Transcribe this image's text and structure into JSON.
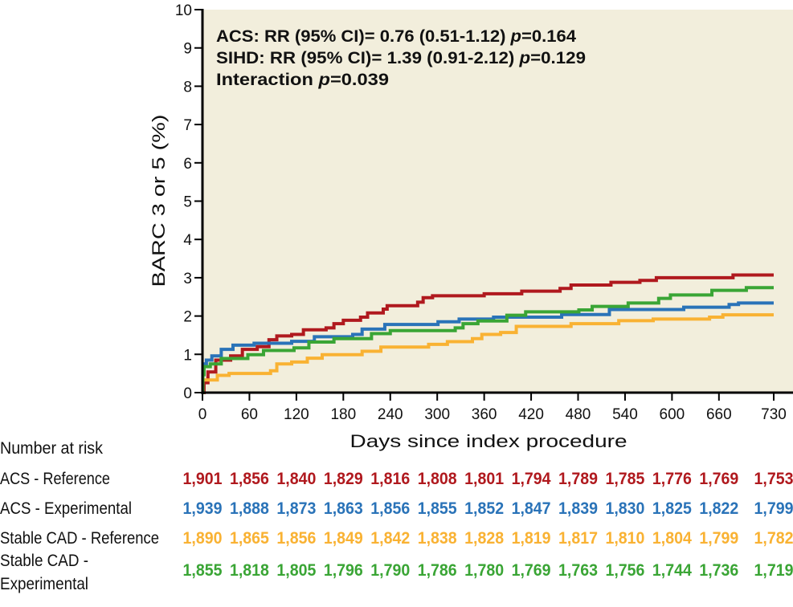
{
  "chart_data": {
    "type": "line",
    "step": true,
    "xlabel": "Days since index procedure",
    "ylabel": "BARC 3 or 5 (%)",
    "xlim": [
      0,
      730
    ],
    "ylim": [
      0,
      10
    ],
    "xticks": [
      0,
      60,
      120,
      180,
      240,
      300,
      360,
      420,
      480,
      540,
      600,
      660,
      730
    ],
    "yticks": [
      0,
      1,
      2,
      3,
      4,
      5,
      6,
      7,
      8,
      9,
      10
    ],
    "background": "#f2eedc",
    "grid": false,
    "annotations": [
      {
        "pre": "ACS: RR (95% CI)= 0.76 (0.51-1.12) ",
        "p": "p",
        "post": "=0.164"
      },
      {
        "pre": "SIHD: RR (95% CI)= 1.39 (0.91-2.12) ",
        "p": "p",
        "post": "=0.129"
      },
      {
        "pre": "Interaction ",
        "p": "p",
        "post": "=0.039"
      }
    ],
    "series": [
      {
        "name": "ACS - Reference",
        "color": "#b0191e",
        "x": [
          0,
          2,
          7,
          17,
          36,
          51,
          70,
          85,
          95,
          114,
          129,
          158,
          168,
          180,
          202,
          211,
          231,
          236,
          275,
          282,
          294,
          360,
          408,
          457,
          471,
          522,
          559,
          580,
          678,
          730
        ],
        "y": [
          0,
          0.26,
          0.54,
          0.85,
          0.96,
          1.13,
          1.2,
          1.38,
          1.48,
          1.52,
          1.64,
          1.69,
          1.8,
          1.89,
          1.97,
          2.08,
          2.18,
          2.27,
          2.36,
          2.48,
          2.53,
          2.58,
          2.65,
          2.72,
          2.81,
          2.88,
          2.93,
          3.0,
          3.07,
          3.07
        ]
      },
      {
        "name": "ACS - Experimental",
        "color": "#2a73b8",
        "x": [
          0,
          0.5,
          5,
          12,
          24,
          39,
          66,
          114,
          143,
          192,
          204,
          233,
          301,
          328,
          372,
          459,
          520,
          615,
          673,
          685,
          730
        ],
        "y": [
          0,
          0.75,
          0.85,
          0.96,
          1.13,
          1.24,
          1.29,
          1.34,
          1.46,
          1.52,
          1.66,
          1.78,
          1.85,
          1.92,
          1.97,
          2.04,
          2.17,
          2.23,
          2.3,
          2.34,
          2.34
        ]
      },
      {
        "name": "Stable CAD - Reference",
        "color": "#f9b233",
        "x": [
          0,
          0.5,
          19,
          34,
          87,
          95,
          114,
          134,
          153,
          204,
          228,
          289,
          313,
          345,
          357,
          381,
          401,
          471,
          532,
          576,
          648,
          665,
          730
        ],
        "y": [
          0,
          0.33,
          0.45,
          0.5,
          0.57,
          0.75,
          0.8,
          0.9,
          0.99,
          1.08,
          1.19,
          1.26,
          1.33,
          1.41,
          1.52,
          1.57,
          1.73,
          1.8,
          1.88,
          1.92,
          1.97,
          2.03,
          2.03
        ]
      },
      {
        "name": "Stable CAD - Experimental",
        "color": "#3aa535",
        "x": [
          0,
          0.5,
          2,
          10,
          24,
          58,
          78,
          117,
          136,
          168,
          216,
          240,
          323,
          333,
          352,
          389,
          413,
          481,
          498,
          544,
          583,
          598,
          651,
          695,
          730
        ],
        "y": [
          0,
          0.47,
          0.68,
          0.75,
          0.89,
          0.99,
          1.1,
          1.17,
          1.32,
          1.41,
          1.54,
          1.62,
          1.69,
          1.8,
          1.87,
          2.02,
          2.11,
          2.16,
          2.25,
          2.34,
          2.46,
          2.55,
          2.67,
          2.74,
          2.74
        ]
      }
    ]
  },
  "risk_table": {
    "title": "Number at risk",
    "rows": [
      {
        "label": [
          "ACS - Reference"
        ],
        "color": "#b0191e",
        "values": [
          "1,901",
          "1,856",
          "1,840",
          "1,829",
          "1,816",
          "1,808",
          "1,801",
          "1,794",
          "1,789",
          "1,785",
          "1,776",
          "1,769",
          "1,753"
        ]
      },
      {
        "label": [
          "ACS - Experimental"
        ],
        "color": "#2a73b8",
        "values": [
          "1,939",
          "1,888",
          "1,873",
          "1,863",
          "1,856",
          "1,855",
          "1,852",
          "1,847",
          "1,839",
          "1,830",
          "1,825",
          "1,822",
          "1,799"
        ]
      },
      {
        "label": [
          "Stable CAD - Reference"
        ],
        "color": "#f9b233",
        "values": [
          "1,890",
          "1,865",
          "1,856",
          "1,849",
          "1,842",
          "1,838",
          "1,828",
          "1,819",
          "1,817",
          "1,810",
          "1,804",
          "1,799",
          "1,782"
        ]
      },
      {
        "label": [
          "Stable CAD -",
          "Experimental"
        ],
        "color": "#3aa535",
        "values": [
          "1,855",
          "1,818",
          "1,805",
          "1,796",
          "1,790",
          "1,786",
          "1,780",
          "1,769",
          "1,763",
          "1,756",
          "1,744",
          "1,736",
          "1,719"
        ]
      }
    ]
  }
}
